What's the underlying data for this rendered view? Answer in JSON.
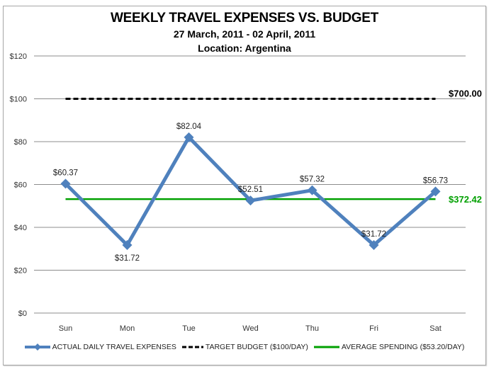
{
  "chart_data": {
    "type": "line",
    "title": "WEEKLY TRAVEL EXPENSES VS. BUDGET",
    "subtitle": "27 March, 2011 - 02 April, 2011",
    "subtitle2": "Location: Argentina",
    "categories": [
      "Sun",
      "Mon",
      "Tue",
      "Wed",
      "Thu",
      "Fri",
      "Sat"
    ],
    "series": [
      {
        "name": "ACTUAL DAILY TRAVEL EXPENSES",
        "values": [
          60.37,
          31.72,
          82.04,
          52.51,
          57.32,
          31.72,
          56.73
        ],
        "labels": [
          "$60.37",
          "$31.72",
          "$82.04",
          "$52.51",
          "$57.32",
          "$31.72",
          "$56.73"
        ],
        "label_pos": [
          "above",
          "below",
          "above",
          "above",
          "above",
          "above",
          "above"
        ],
        "color": "#4f81bd",
        "style": "solid-diamond"
      },
      {
        "name": "TARGET BUDGET ($100/DAY)",
        "values": [
          100,
          100,
          100,
          100,
          100,
          100,
          100
        ],
        "end_label": "$700.00",
        "color": "#000000",
        "style": "dashed"
      },
      {
        "name": "AVERAGE SPENDING ($53.20/DAY)",
        "values": [
          53.2,
          53.2,
          53.2,
          53.2,
          53.2,
          53.2,
          53.2
        ],
        "end_label": "$372.42",
        "color": "#00a000",
        "style": "solid"
      }
    ],
    "xlabel": "",
    "ylabel": "",
    "ylim": [
      0,
      120
    ],
    "yticks": [
      0,
      20,
      40,
      60,
      80,
      100,
      120
    ],
    "ytick_labels": [
      "$0",
      "$20",
      "$40",
      "$60",
      "$80",
      "$100",
      "$120"
    ],
    "grid": true,
    "legend_position": "bottom"
  }
}
